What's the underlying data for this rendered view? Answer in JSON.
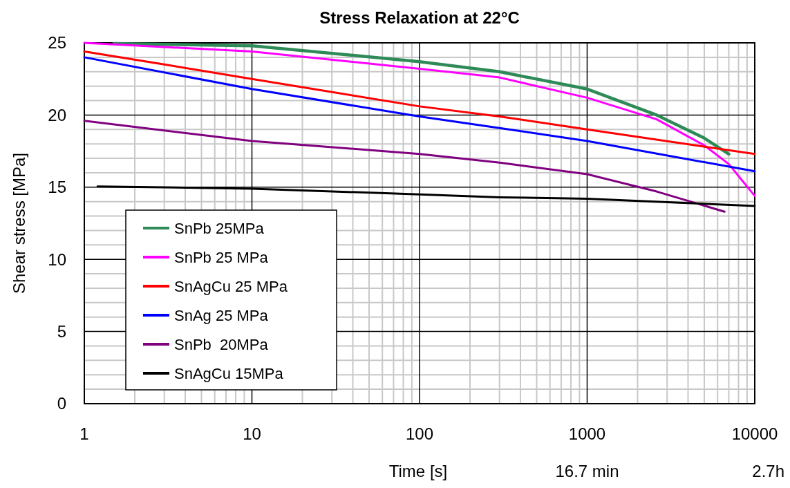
{
  "chart_data": {
    "type": "line",
    "title": "Stress Relaxation at 22°C",
    "xlabel": "Time [s]",
    "ylabel": "Shear stress [MPa]",
    "log": "x",
    "xlim": [
      1,
      10000
    ],
    "xticks": [
      1,
      10,
      100,
      1000,
      10000
    ],
    "ylim": [
      0,
      25
    ],
    "yticks": [
      0,
      5,
      10,
      15,
      20,
      25
    ],
    "grid": true,
    "legend": "bottom left",
    "marker": "none",
    "line_style": "solid",
    "annotations": [
      "16.7 min",
      "2.7h"
    ],
    "series": [
      {
        "name": "SnPb 25MPa",
        "color": "#2e8b57",
        "x": [
          1.5,
          10,
          100,
          300,
          1000,
          2600,
          5000,
          7000
        ],
        "values": [
          24.95,
          24.8,
          23.7,
          23.0,
          21.8,
          20.0,
          18.4,
          17.3
        ]
      },
      {
        "name": "SnPb 25 MPa",
        "color": "#ff00ff",
        "x": [
          1,
          10,
          100,
          300,
          1000,
          2600,
          5000,
          7000,
          8500,
          10000
        ],
        "values": [
          25,
          24.4,
          23.2,
          22.6,
          21.2,
          19.7,
          17.9,
          16.6,
          15.4,
          14.4
        ]
      },
      {
        "name": "SnAgCu 25 MPa",
        "color": "#ff0000",
        "x": [
          1,
          3,
          10,
          100,
          300,
          1000,
          10000
        ],
        "values": [
          24.4,
          23.5,
          22.5,
          20.6,
          19.9,
          19.0,
          17.3
        ]
      },
      {
        "name": "SnAg 25 MPa",
        "color": "#0000ff",
        "x": [
          1,
          10,
          100,
          300,
          1000,
          10000
        ],
        "values": [
          24.0,
          21.8,
          19.9,
          19.1,
          18.2,
          16.1
        ]
      },
      {
        "name": "SnPb  20MPa",
        "color": "#800080",
        "x": [
          1,
          10,
          100,
          300,
          1000,
          2600,
          6600
        ],
        "values": [
          19.6,
          18.2,
          17.3,
          16.7,
          15.9,
          14.7,
          13.3
        ]
      },
      {
        "name": "SnAgCu 15MPa",
        "color": "#000000",
        "x": [
          1.2,
          10,
          100,
          300,
          1000,
          10000
        ],
        "values": [
          15.05,
          14.9,
          14.5,
          14.3,
          14.2,
          13.7
        ]
      }
    ]
  }
}
